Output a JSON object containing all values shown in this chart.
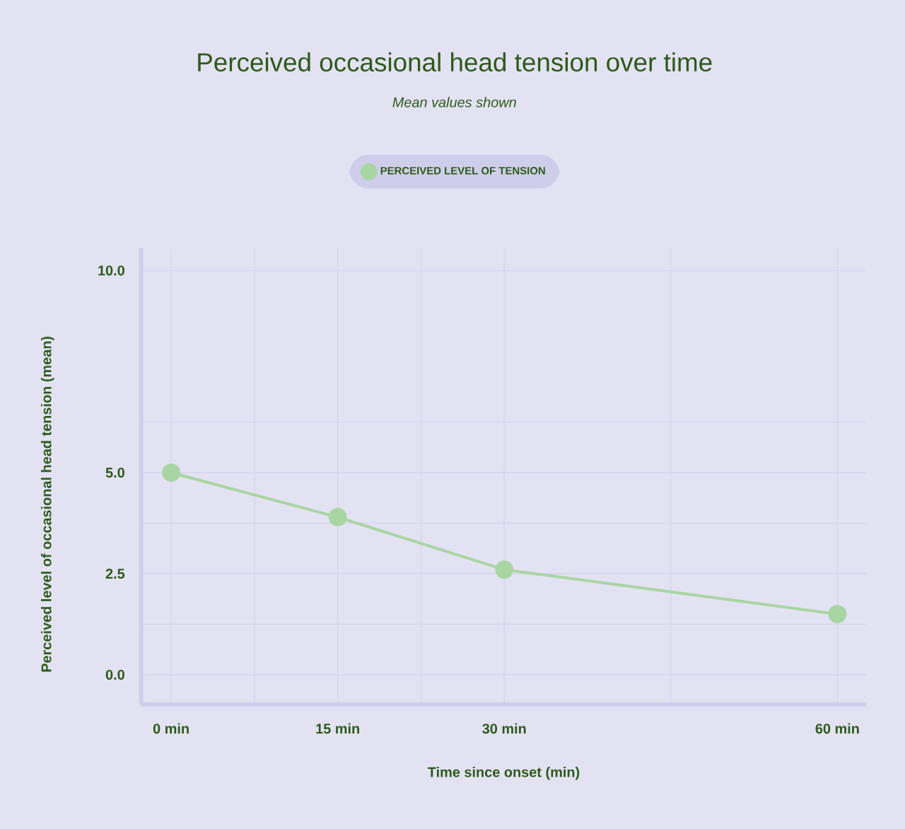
{
  "chart_data": {
    "type": "line",
    "title": "Perceived occasional head tension over time",
    "subtitle": "Mean values shown",
    "xlabel": "Time since onset (min)",
    "ylabel": "Perceived level of occasional head tension  (mean)",
    "x": [
      0,
      15,
      30,
      60
    ],
    "series": [
      {
        "name": "PERCEIVED LEVEL OF TENSION",
        "color": "#a8d5a2",
        "values": [
          5.0,
          3.9,
          2.6,
          1.5
        ]
      }
    ],
    "xlim": [
      -2.7,
      62.6
    ],
    "xticks": [
      {
        "value": 0,
        "label": "0 min"
      },
      {
        "value": 7.5,
        "label": null
      },
      {
        "value": 15,
        "label": "15 min"
      },
      {
        "value": 22.5,
        "label": null
      },
      {
        "value": 30,
        "label": "30 min"
      },
      {
        "value": 45,
        "label": null
      },
      {
        "value": 60,
        "label": "60 min"
      }
    ],
    "ylim": [
      -0.73,
      10.56
    ],
    "yticks": [
      {
        "value": 0,
        "label": "0.0"
      },
      {
        "value": 1.25,
        "label": null
      },
      2.5,
      {
        "value": 3.75,
        "label": null
      },
      {
        "value": 5,
        "label": "5.0"
      },
      {
        "value": 6.25,
        "label": null
      },
      {
        "value": 10,
        "label": "10.0"
      }
    ],
    "grid": true,
    "legend": "top",
    "marker": "circle",
    "line_style": "solid"
  }
}
